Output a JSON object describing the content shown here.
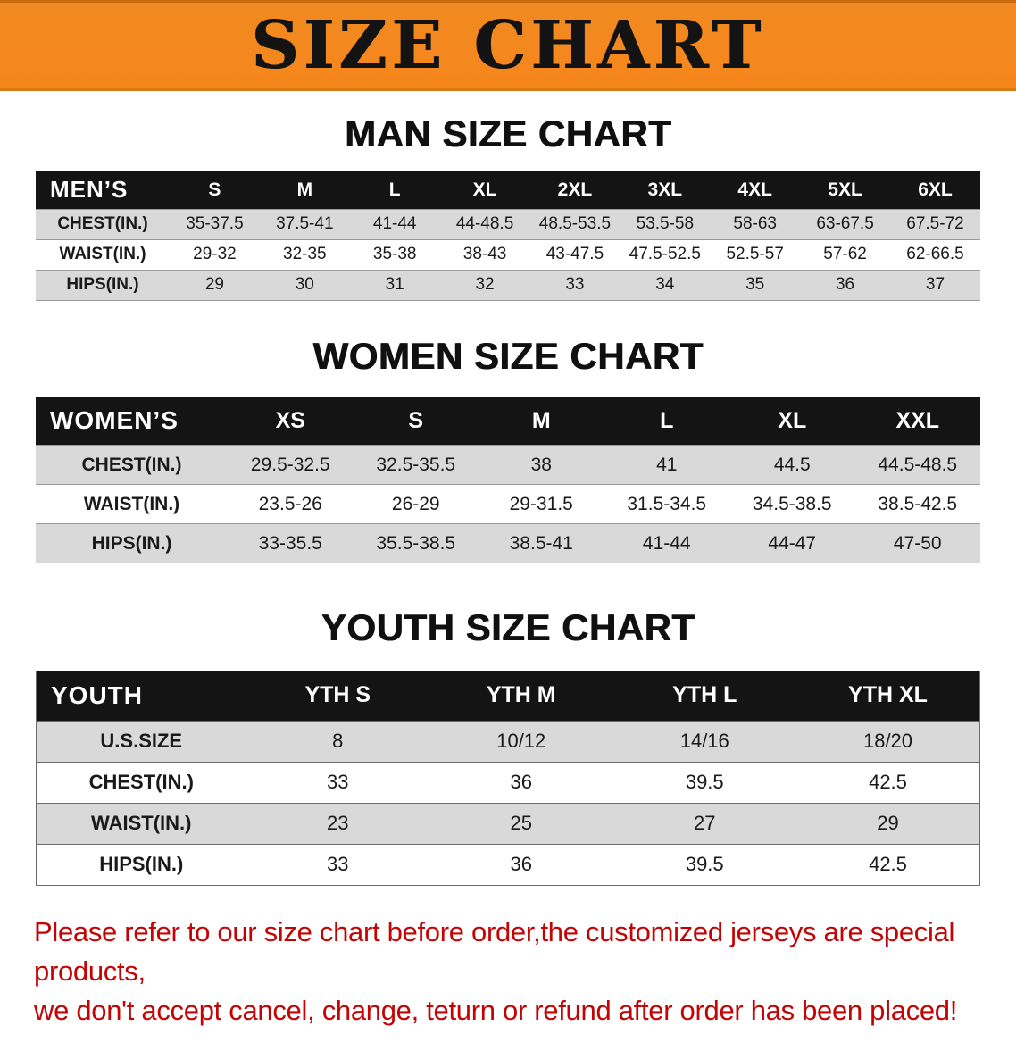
{
  "banner": {
    "title": "SIZE CHART",
    "bg_color": "#f6861c",
    "text_color": "#131313"
  },
  "colors": {
    "header_bar": "#141414",
    "row_gray": "#d9d9d9",
    "row_white": "#ffffff",
    "notice_red": "#c40404"
  },
  "sections": [
    {
      "heading": "MAN SIZE CHART",
      "table": {
        "header": [
          "MEN’S",
          "S",
          "M",
          "L",
          "XL",
          "2XL",
          "3XL",
          "4XL",
          "5XL",
          "6XL"
        ],
        "rows": [
          {
            "label": "CHEST(IN.)",
            "values": [
              "35-37.5",
              "37.5-41",
              "41-44",
              "44-48.5",
              "48.5-53.5",
              "53.5-58",
              "58-63",
              "63-67.5",
              "67.5-72"
            ]
          },
          {
            "label": "WAIST(IN.)",
            "values": [
              "29-32",
              "32-35",
              "35-38",
              "38-43",
              "43-47.5",
              "47.5-52.5",
              "52.5-57",
              "57-62",
              "62-66.5"
            ]
          },
          {
            "label": "HIPS(IN.)",
            "values": [
              "29",
              "30",
              "31",
              "32",
              "33",
              "34",
              "35",
              "36",
              "37"
            ]
          }
        ]
      }
    },
    {
      "heading": "WOMEN SIZE CHART",
      "table": {
        "header": [
          "WOMEN’S",
          "XS",
          "S",
          "M",
          "L",
          "XL",
          "XXL"
        ],
        "rows": [
          {
            "label": "CHEST(IN.)",
            "values": [
              "29.5-32.5",
              "32.5-35.5",
              "38",
              "41",
              "44.5",
              "44.5-48.5"
            ]
          },
          {
            "label": "WAIST(IN.)",
            "values": [
              "23.5-26",
              "26-29",
              "29-31.5",
              "31.5-34.5",
              "34.5-38.5",
              "38.5-42.5"
            ]
          },
          {
            "label": "HIPS(IN.)",
            "values": [
              "33-35.5",
              "35.5-38.5",
              "38.5-41",
              "41-44",
              "44-47",
              "47-50"
            ]
          }
        ]
      }
    },
    {
      "heading": "YOUTH SIZE CHART",
      "table": {
        "header": [
          "YOUTH",
          "YTH S",
          "YTH M",
          "YTH L",
          "YTH XL"
        ],
        "rows": [
          {
            "label": "U.S.SIZE",
            "values": [
              "8",
              "10/12",
              "14/16",
              "18/20"
            ]
          },
          {
            "label": "CHEST(IN.)",
            "values": [
              "33",
              "36",
              "39.5",
              "42.5"
            ]
          },
          {
            "label": "WAIST(IN.)",
            "values": [
              "23",
              "25",
              "27",
              "29"
            ]
          },
          {
            "label": "HIPS(IN.)",
            "values": [
              "33",
              "36",
              "39.5",
              "42.5"
            ]
          }
        ]
      }
    }
  ],
  "footer": {
    "line1": "Please refer to our size chart before order,the customized jerseys are special products,",
    "line2": "we don't accept cancel, change, teturn or refund after order has been placed!"
  }
}
